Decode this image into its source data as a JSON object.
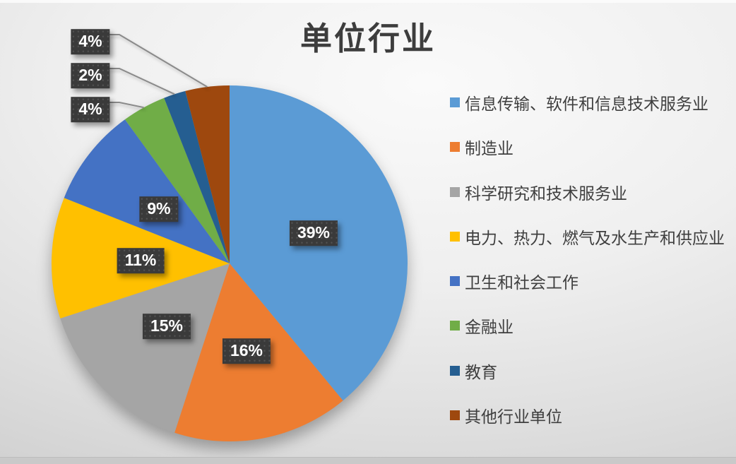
{
  "chart_data": {
    "type": "pie",
    "title": "单位行业",
    "start_angle_deg": 0,
    "direction": "clockwise",
    "legend_position": "right",
    "total": 100,
    "data_label_format": "percent",
    "series": [
      {
        "label": "信息传输、软件和信息技术服务业",
        "value": 39,
        "pct_label": "39%",
        "color": "#5B9BD5",
        "label_placement": "inside"
      },
      {
        "label": "制造业",
        "value": 16,
        "pct_label": "16%",
        "color": "#ED7D31",
        "label_placement": "inside"
      },
      {
        "label": "科学研究和技术服务业",
        "value": 15,
        "pct_label": "15%",
        "color": "#A5A5A5",
        "label_placement": "inside"
      },
      {
        "label": "电力、热力、燃气及水生产和供应业",
        "value": 11,
        "pct_label": "11%",
        "color": "#FFC000",
        "label_placement": "inside"
      },
      {
        "label": "卫生和社会工作",
        "value": 9,
        "pct_label": "9%",
        "color": "#4472C4",
        "label_placement": "inside"
      },
      {
        "label": "金融业",
        "value": 4,
        "pct_label": "4%",
        "color": "#70AD47",
        "label_placement": "callout"
      },
      {
        "label": "教育",
        "value": 2,
        "pct_label": "2%",
        "color": "#255E91",
        "label_placement": "callout"
      },
      {
        "label": "其他行业单位",
        "value": 4,
        "pct_label": "4%",
        "color": "#9E480E",
        "label_placement": "callout"
      }
    ]
  }
}
